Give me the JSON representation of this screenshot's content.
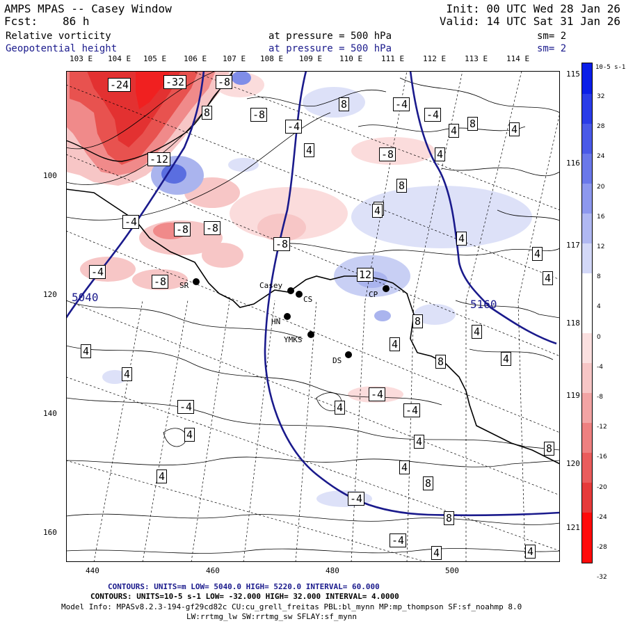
{
  "header": {
    "title": "AMPS MPAS -- Casey Window",
    "fcst_label": "Fcst:",
    "fcst_value": "86 h",
    "init": "Init: 00 UTC Wed 28 Jan 26",
    "valid": "Valid: 14 UTC Sat 31 Jan 26",
    "var1_name": "Relative vorticity",
    "var1_level": "at pressure =  500 hPa",
    "var1_smooth": "sm= 2",
    "var2_name": "Geopotential height",
    "var2_level": "at pressure =  500 hPa",
    "var2_smooth": "sm= 2"
  },
  "colors": {
    "height_contour": "#1a1a8c",
    "positive": "#e31a1c",
    "negative": "#1f3fd6",
    "coast": "#000000"
  },
  "longitude_top": [
    "103 E",
    "104 E",
    "105 E",
    "106 E",
    "107 E",
    "108 E",
    "109 E",
    "110 E",
    "111 E",
    "112 E",
    "113 E",
    "114 E"
  ],
  "longitude_right": [
    "115 E",
    "116 E",
    "117 E",
    "118 E",
    "119 E",
    "120 E",
    "121 E"
  ],
  "x_ticks": [
    "440",
    "460",
    "480",
    "500"
  ],
  "y_ticks": [
    "100",
    "120",
    "140",
    "160"
  ],
  "colorbar": {
    "unit": "10-5 s-1",
    "labels": [
      "32",
      "28",
      "24",
      "20",
      "16",
      "12",
      "8",
      "4",
      "0",
      "-4",
      "-8",
      "-12",
      "-16",
      "-20",
      "-24",
      "-28",
      "-32"
    ]
  },
  "height_labels": {
    "left": "5040",
    "right": "5160"
  },
  "stations": [
    {
      "name": "SR"
    },
    {
      "name": "Casey"
    },
    {
      "name": "CS"
    },
    {
      "name": "CP"
    },
    {
      "name": "HN"
    },
    {
      "name": "YMKS"
    },
    {
      "name": "DS"
    }
  ],
  "contour_labels": [
    "-24",
    "-32",
    "-8",
    "8",
    "-8",
    "-4",
    "-4",
    "-4",
    "8",
    "4",
    "8",
    "4",
    "4",
    "-12",
    "-8",
    "4",
    "8",
    "-4",
    "-8",
    "-8",
    "-8",
    "4",
    "4",
    "-4",
    "12",
    "-8",
    "8",
    "4",
    "4",
    "8",
    "4",
    "4",
    "4",
    "4",
    "-4",
    "-4",
    "-4",
    "4",
    "4",
    "4",
    "4",
    "8",
    "-4",
    "8",
    "4",
    "4",
    "8",
    "-4",
    "4",
    "4",
    "4"
  ],
  "footer": {
    "line1": "CONTOURS:  UNITS=m  LOW=  5040.0        HIGH=  5220.0      INTERVAL=  60.000",
    "line2": "CONTOURS:  UNITS=10-5 s-1  LOW= -32.000        HIGH=  32.000        INTERVAL=   4.0000",
    "line3": "Model Info: MPASv8.2.3-194-gf29cd82c CU:cu_grell_freitas PBL:bl_mynn MP:mp_thompson SF:sf_noahmp 8.0",
    "line4": "LW:rrtmg_lw SW:rrtmg_sw SFLAY:sf_mynn"
  }
}
